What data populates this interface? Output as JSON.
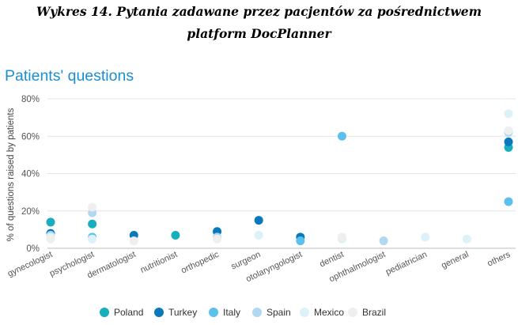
{
  "caption": {
    "line1": "Wykres 14. Pytania zadawane przez pacjentów za pośrednictwem",
    "line2": "platform DocPlanner"
  },
  "chart_data": {
    "type": "scatter",
    "title": "Patients' questions",
    "xlabel": "",
    "ylabel": "% of questions raised by patients",
    "ylim": [
      0,
      80
    ],
    "yticks": [
      0,
      20,
      40,
      60,
      80
    ],
    "ytick_labels": [
      "0%",
      "20%",
      "40%",
      "60%",
      "80%"
    ],
    "grid": true,
    "legend_position": "bottom-center",
    "categories": [
      "gynecologist",
      "psychologist",
      "dermatologist",
      "nutritionist",
      "orthopedic",
      "surgeon",
      "otolaryngologist",
      "dentist",
      "ophthalmologist",
      "pediatrician",
      "general",
      "others"
    ],
    "series": [
      {
        "name": "Poland",
        "color": "#17aebe",
        "values": [
          14,
          13,
          null,
          7,
          null,
          null,
          null,
          null,
          null,
          null,
          null,
          54
        ]
      },
      {
        "name": "Turkey",
        "color": "#0a78bc",
        "values": [
          8,
          null,
          7,
          null,
          9,
          15,
          6,
          null,
          null,
          null,
          null,
          57
        ]
      },
      {
        "name": "Italy",
        "color": "#5bc0ee",
        "values": [
          null,
          6,
          null,
          null,
          null,
          null,
          4,
          60,
          null,
          null,
          null,
          25
        ]
      },
      {
        "name": "Spain",
        "color": "#b1d8f0",
        "values": [
          7,
          19,
          null,
          null,
          6,
          null,
          null,
          null,
          4,
          null,
          null,
          62
        ]
      },
      {
        "name": "Mexico",
        "color": "#dcf1f8",
        "values": [
          6,
          5,
          null,
          null,
          null,
          7,
          null,
          5,
          null,
          6,
          5,
          72
        ]
      },
      {
        "name": "Brazil",
        "color": "#efefef",
        "values": [
          5,
          22,
          4,
          null,
          5,
          null,
          null,
          6,
          null,
          null,
          null,
          63
        ]
      }
    ]
  }
}
